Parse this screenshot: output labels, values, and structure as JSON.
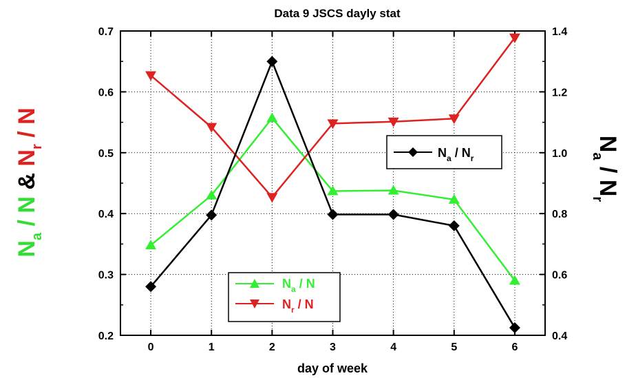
{
  "chart_data": {
    "type": "line",
    "title": "Data 9 JSCS dayly stat",
    "xlabel": "day of week",
    "x": [
      0,
      1,
      2,
      3,
      4,
      5,
      6
    ],
    "xlim": [
      -0.5,
      6.5
    ],
    "ylim": [
      0.2,
      0.7
    ],
    "y_ticks": [
      "0.2",
      "0.3",
      "0.4",
      "0.5",
      "0.6",
      "0.7"
    ],
    "y2lim": [
      0.4,
      1.4
    ],
    "y2_ticks": [
      "0.4",
      "0.6",
      "0.8",
      "1.0",
      "1.2",
      "1.4"
    ],
    "x_ticks": [
      "0",
      "1",
      "2",
      "3",
      "4",
      "5",
      "6"
    ],
    "grid": true,
    "ylabel": {
      "na": {
        "main": "N",
        "sub": "a",
        "rest": " / N",
        "color": "#33dd33"
      },
      "amp": {
        "text": " & ",
        "color": "#000000"
      },
      "nr": {
        "main": "N",
        "sub": "r",
        "rest": " / N",
        "color": "#dd2222"
      }
    },
    "y2label": {
      "main": "N",
      "sub_a": "a",
      "slash": " / ",
      "main2": "N",
      "sub_r": "r"
    },
    "series": [
      {
        "key": "na_n",
        "label_main": "N",
        "label_sub": "a",
        "label_rest": " / N",
        "axis": "left",
        "color": "#33ee33",
        "marker": "triangle-up",
        "values": [
          0.348,
          0.43,
          0.557,
          0.437,
          0.438,
          0.423,
          0.29
        ]
      },
      {
        "key": "nr_n",
        "label_main": "N",
        "label_sub": "r",
        "label_rest": " / N",
        "axis": "left",
        "color": "#dd2222",
        "marker": "triangle-down",
        "values": [
          0.627,
          0.542,
          0.427,
          0.548,
          0.551,
          0.556,
          0.689
        ]
      },
      {
        "key": "na_nr",
        "label_main": "N",
        "label_sub": "a",
        "label_rest": " / N",
        "label_sub2": "r",
        "axis": "right",
        "color": "#000000",
        "marker": "diamond",
        "values": [
          0.56,
          0.795,
          1.3,
          0.797,
          0.797,
          0.76,
          0.425
        ]
      }
    ],
    "legends": [
      {
        "items": [
          "na_nr"
        ],
        "placement": "center-right"
      },
      {
        "items": [
          "na_n",
          "nr_n"
        ],
        "placement": "bottom-center"
      }
    ]
  }
}
